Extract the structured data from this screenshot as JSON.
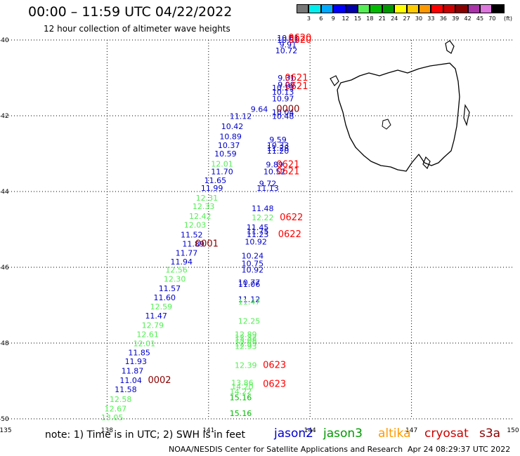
{
  "header": {
    "title": "00:00 – 11:59 UTC 04/22/2022",
    "subtitle": "12 hour collection of altimeter wave heights"
  },
  "colorbar": {
    "colors": [
      "#777777",
      "#00eeee",
      "#00aaff",
      "#0000ff",
      "#0000aa",
      "#55ee55",
      "#00bb00",
      "#009900",
      "#ffff00",
      "#ffcc00",
      "#ff9900",
      "#ff0000",
      "#cc0000",
      "#880000",
      "#aa33aa",
      "#dd77dd",
      "#000000"
    ],
    "labels": [
      "3",
      "6",
      "9",
      "12",
      "15",
      "18",
      "21",
      "24",
      "27",
      "30",
      "33",
      "36",
      "39",
      "42",
      "45",
      "70",
      "(ft)"
    ]
  },
  "axes": {
    "lon_ticks": [
      "135",
      "138",
      "141",
      "144",
      "147",
      "150"
    ],
    "lat_ticks": [
      "-40",
      "-42",
      "-44",
      "-46",
      "-48",
      "-50"
    ]
  },
  "footer": {
    "note": "note: 1) Time is in UTC; 2) SWH is in feet",
    "satellites": [
      {
        "name": "jason2",
        "color": "#0000cc"
      },
      {
        "name": "jason3",
        "color": "#009900"
      },
      {
        "name": "altika",
        "color": "#ff9900"
      },
      {
        "name": "cryosat",
        "color": "#cc0000"
      },
      {
        "name": "s3a",
        "color": "#880000"
      }
    ],
    "credit": "NOAA/NESDIS Center for Satellite Applications and Research",
    "timestamp": "Apr 24 08:29:37 UTC 2022"
  },
  "observations": [
    {
      "lon": 143.35,
      "lat": -40.02,
      "text": "10.51",
      "color": "#0000cc"
    },
    {
      "lon": 143.35,
      "lat": -40.07,
      "text": "10.51",
      "color": "#0000cc"
    },
    {
      "lon": 143.35,
      "lat": -40.19,
      "text": "9.91",
      "color": "#0000cc"
    },
    {
      "lon": 143.3,
      "lat": -40.35,
      "text": "10.72",
      "color": "#0000cc"
    },
    {
      "lon": 143.3,
      "lat": -41.07,
      "text": "9.31",
      "color": "#0000cc"
    },
    {
      "lon": 143.3,
      "lat": -41.25,
      "text": "9.99",
      "color": "#0000cc"
    },
    {
      "lon": 143.2,
      "lat": -41.33,
      "text": "10.19",
      "color": "#0000cc"
    },
    {
      "lon": 143.2,
      "lat": -41.44,
      "text": "10.13",
      "color": "#0000cc"
    },
    {
      "lon": 143.2,
      "lat": -41.62,
      "text": "10.97",
      "color": "#0000cc"
    },
    {
      "lon": 142.5,
      "lat": -41.9,
      "text": "9.64",
      "color": "#0000cc"
    },
    {
      "lon": 143.2,
      "lat": -41.98,
      "text": "10.04",
      "color": "#0000cc"
    },
    {
      "lon": 143.2,
      "lat": -42.08,
      "text": "10.48",
      "color": "#0000cc"
    },
    {
      "lon": 141.95,
      "lat": -42.08,
      "text": "11.12",
      "color": "#0000cc"
    },
    {
      "lon": 141.7,
      "lat": -42.35,
      "text": "10.42",
      "color": "#0000cc"
    },
    {
      "lon": 141.65,
      "lat": -42.62,
      "text": "10.89",
      "color": "#0000cc"
    },
    {
      "lon": 143.05,
      "lat": -42.7,
      "text": "9.59",
      "color": "#0000cc"
    },
    {
      "lon": 141.6,
      "lat": -42.85,
      "text": "10.37",
      "color": "#0000cc"
    },
    {
      "lon": 143.05,
      "lat": -42.85,
      "text": "10.33",
      "color": "#0000cc"
    },
    {
      "lon": 143.05,
      "lat": -42.93,
      "text": "11.28",
      "color": "#0000cc"
    },
    {
      "lon": 143.05,
      "lat": -43.0,
      "text": "11.20",
      "color": "#0000cc"
    },
    {
      "lon": 141.5,
      "lat": -43.07,
      "text": "10.59",
      "color": "#0000cc"
    },
    {
      "lon": 141.4,
      "lat": -43.34,
      "text": "12.01",
      "color": "#55ee55"
    },
    {
      "lon": 142.95,
      "lat": -43.36,
      "text": "9.89",
      "color": "#0000cc"
    },
    {
      "lon": 141.4,
      "lat": -43.55,
      "text": "11.70",
      "color": "#0000cc"
    },
    {
      "lon": 142.95,
      "lat": -43.55,
      "text": "10.52",
      "color": "#0000cc"
    },
    {
      "lon": 141.2,
      "lat": -43.78,
      "text": "11.65",
      "color": "#0000cc"
    },
    {
      "lon": 142.75,
      "lat": -43.86,
      "text": "9.72",
      "color": "#0000cc"
    },
    {
      "lon": 141.1,
      "lat": -43.98,
      "text": "11.99",
      "color": "#0000cc"
    },
    {
      "lon": 142.75,
      "lat": -43.98,
      "text": "11.13",
      "color": "#0000cc"
    },
    {
      "lon": 140.95,
      "lat": -44.24,
      "text": "12.31",
      "color": "#55ee55"
    },
    {
      "lon": 140.85,
      "lat": -44.46,
      "text": "12.33",
      "color": "#55ee55"
    },
    {
      "lon": 142.6,
      "lat": -44.52,
      "text": "11.48",
      "color": "#0000cc"
    },
    {
      "lon": 140.75,
      "lat": -44.72,
      "text": "12.42",
      "color": "#55ee55"
    },
    {
      "lon": 142.6,
      "lat": -44.76,
      "text": "12.22",
      "color": "#55ee55"
    },
    {
      "lon": 140.6,
      "lat": -44.95,
      "text": "12.03",
      "color": "#55ee55"
    },
    {
      "lon": 142.45,
      "lat": -45.02,
      "text": "11.45",
      "color": "#0000cc"
    },
    {
      "lon": 142.45,
      "lat": -45.12,
      "text": "11.75",
      "color": "#0000cc"
    },
    {
      "lon": 142.45,
      "lat": -45.2,
      "text": "11.23",
      "color": "#0000cc"
    },
    {
      "lon": 140.5,
      "lat": -45.21,
      "text": "11.52",
      "color": "#0000cc"
    },
    {
      "lon": 142.4,
      "lat": -45.4,
      "text": "10.92",
      "color": "#0000cc"
    },
    {
      "lon": 140.55,
      "lat": -45.45,
      "text": "11.89",
      "color": "#0000cc"
    },
    {
      "lon": 140.35,
      "lat": -45.69,
      "text": "11.77",
      "color": "#0000cc"
    },
    {
      "lon": 142.3,
      "lat": -45.77,
      "text": "10.24",
      "color": "#0000cc"
    },
    {
      "lon": 140.2,
      "lat": -45.93,
      "text": "11.94",
      "color": "#0000cc"
    },
    {
      "lon": 142.3,
      "lat": -45.97,
      "text": "10.75",
      "color": "#0000cc"
    },
    {
      "lon": 140.05,
      "lat": -46.14,
      "text": "12.56",
      "color": "#55ee55"
    },
    {
      "lon": 142.3,
      "lat": -46.14,
      "text": "10.92",
      "color": "#0000cc"
    },
    {
      "lon": 140.0,
      "lat": -46.38,
      "text": "12.30",
      "color": "#55ee55"
    },
    {
      "lon": 142.2,
      "lat": -46.47,
      "text": "10.77",
      "color": "#0000cc"
    },
    {
      "lon": 142.2,
      "lat": -46.52,
      "text": "11.06",
      "color": "#0000cc"
    },
    {
      "lon": 139.85,
      "lat": -46.63,
      "text": "11.57",
      "color": "#0000cc"
    },
    {
      "lon": 139.7,
      "lat": -46.87,
      "text": "11.60",
      "color": "#0000cc"
    },
    {
      "lon": 142.2,
      "lat": -46.92,
      "text": "11.12",
      "color": "#0000cc"
    },
    {
      "lon": 142.2,
      "lat": -46.98,
      "text": "11.47",
      "color": "#55ee55"
    },
    {
      "lon": 139.6,
      "lat": -47.11,
      "text": "12.59",
      "color": "#55ee55"
    },
    {
      "lon": 139.45,
      "lat": -47.35,
      "text": "11.47",
      "color": "#0000cc"
    },
    {
      "lon": 142.2,
      "lat": -47.49,
      "text": "12.25",
      "color": "#55ee55"
    },
    {
      "lon": 139.35,
      "lat": -47.6,
      "text": "12.79",
      "color": "#55ee55"
    },
    {
      "lon": 139.2,
      "lat": -47.84,
      "text": "12.61",
      "color": "#55ee55"
    },
    {
      "lon": 142.1,
      "lat": -47.84,
      "text": "12.89",
      "color": "#55ee55"
    },
    {
      "lon": 142.1,
      "lat": -47.93,
      "text": "12.32",
      "color": "#55ee55"
    },
    {
      "lon": 142.1,
      "lat": -48.0,
      "text": "13.08",
      "color": "#55ee55"
    },
    {
      "lon": 139.1,
      "lat": -48.08,
      "text": "12.01",
      "color": "#55ee55"
    },
    {
      "lon": 142.1,
      "lat": -48.08,
      "text": "12.55",
      "color": "#55ee55"
    },
    {
      "lon": 142.1,
      "lat": -48.16,
      "text": "12.93",
      "color": "#55ee55"
    },
    {
      "lon": 138.95,
      "lat": -48.32,
      "text": "11.85",
      "color": "#0000cc"
    },
    {
      "lon": 138.85,
      "lat": -48.56,
      "text": "11.93",
      "color": "#0000cc"
    },
    {
      "lon": 142.1,
      "lat": -48.66,
      "text": "12.39",
      "color": "#55ee55"
    },
    {
      "lon": 138.75,
      "lat": -48.81,
      "text": "11.87",
      "color": "#0000cc"
    },
    {
      "lon": 138.7,
      "lat": -49.06,
      "text": "11.04",
      "color": "#0000cc"
    },
    {
      "lon": 142.0,
      "lat": -49.12,
      "text": "13.86",
      "color": "#55ee55"
    },
    {
      "lon": 142.0,
      "lat": -49.22,
      "text": "14.20",
      "color": "#55ee55"
    },
    {
      "lon": 138.55,
      "lat": -49.3,
      "text": "11.58",
      "color": "#0000cc"
    },
    {
      "lon": 141.95,
      "lat": -49.35,
      "text": "14.22",
      "color": "#55ee55"
    },
    {
      "lon": 141.95,
      "lat": -49.51,
      "text": "15.16",
      "color": "#00bb00"
    },
    {
      "lon": 138.4,
      "lat": -49.56,
      "text": "12.58",
      "color": "#55ee55"
    },
    {
      "lon": 138.25,
      "lat": -49.81,
      "text": "12.67",
      "color": "#55ee55"
    },
    {
      "lon": 141.95,
      "lat": -49.93,
      "text": "15.16",
      "color": "#00bb00"
    },
    {
      "lon": 138.15,
      "lat": -50.04,
      "text": "13.05",
      "color": "#55ee55"
    }
  ],
  "time_labels": [
    {
      "lon": 143.7,
      "lat": -40.02,
      "text": "0620",
      "color": "#ff0000"
    },
    {
      "lon": 143.7,
      "lat": -40.07,
      "text": "0620",
      "color": "#ff0000"
    },
    {
      "lon": 143.6,
      "lat": -41.07,
      "text": "0621",
      "color": "#ff0000"
    },
    {
      "lon": 143.6,
      "lat": -41.3,
      "text": "0621",
      "color": "#ff0000"
    },
    {
      "lon": 143.35,
      "lat": -41.9,
      "text": "0000",
      "color": "#880000"
    },
    {
      "lon": 143.35,
      "lat": -43.36,
      "text": "0621",
      "color": "#ff0000"
    },
    {
      "lon": 143.35,
      "lat": -43.55,
      "text": "0621",
      "color": "#ff0000"
    },
    {
      "lon": 143.45,
      "lat": -44.76,
      "text": "0622",
      "color": "#ff0000"
    },
    {
      "lon": 143.4,
      "lat": -45.2,
      "text": "0622",
      "color": "#ff0000"
    },
    {
      "lon": 140.95,
      "lat": -45.45,
      "text": "0001",
      "color": "#880000"
    },
    {
      "lon": 142.95,
      "lat": -48.66,
      "text": "0623",
      "color": "#ff0000"
    },
    {
      "lon": 142.95,
      "lat": -49.16,
      "text": "0623",
      "color": "#ff0000"
    },
    {
      "lon": 139.55,
      "lat": -49.06,
      "text": "0002",
      "color": "#880000"
    }
  ]
}
